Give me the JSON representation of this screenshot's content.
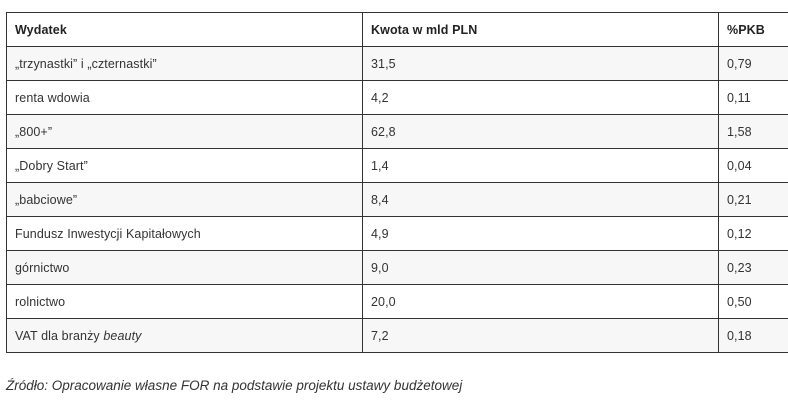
{
  "table": {
    "headers": [
      "Wydatek",
      "Kwota w mld PLN",
      "%PKB"
    ],
    "rows": [
      {
        "name": "„trzynastki” i „czternastki”",
        "amount": "31,5",
        "gdp": "0,79"
      },
      {
        "name": "renta wdowia",
        "amount": "4,2",
        "gdp": "0,11"
      },
      {
        "name": "„800+”",
        "amount": "62,8",
        "gdp": "1,58"
      },
      {
        "name": "„Dobry Start”",
        "amount": "1,4",
        "gdp": "0,04"
      },
      {
        "name": "„babciowe”",
        "amount": "8,4",
        "gdp": "0,21"
      },
      {
        "name": "Fundusz Inwestycji Kapitałowych",
        "amount": "4,9",
        "gdp": "0,12"
      },
      {
        "name": "górnictwo",
        "amount": "9,0",
        "gdp": "0,23"
      },
      {
        "name": "rolnictwo",
        "amount": "20,0",
        "gdp": "0,50"
      },
      {
        "name_prefix": "VAT dla branży ",
        "name_italic": "beauty",
        "amount": "7,2",
        "gdp": "0,18"
      }
    ]
  },
  "caption": "Źródło: Opracowanie własne FOR na podstawie projektu ustawy budżetowej"
}
